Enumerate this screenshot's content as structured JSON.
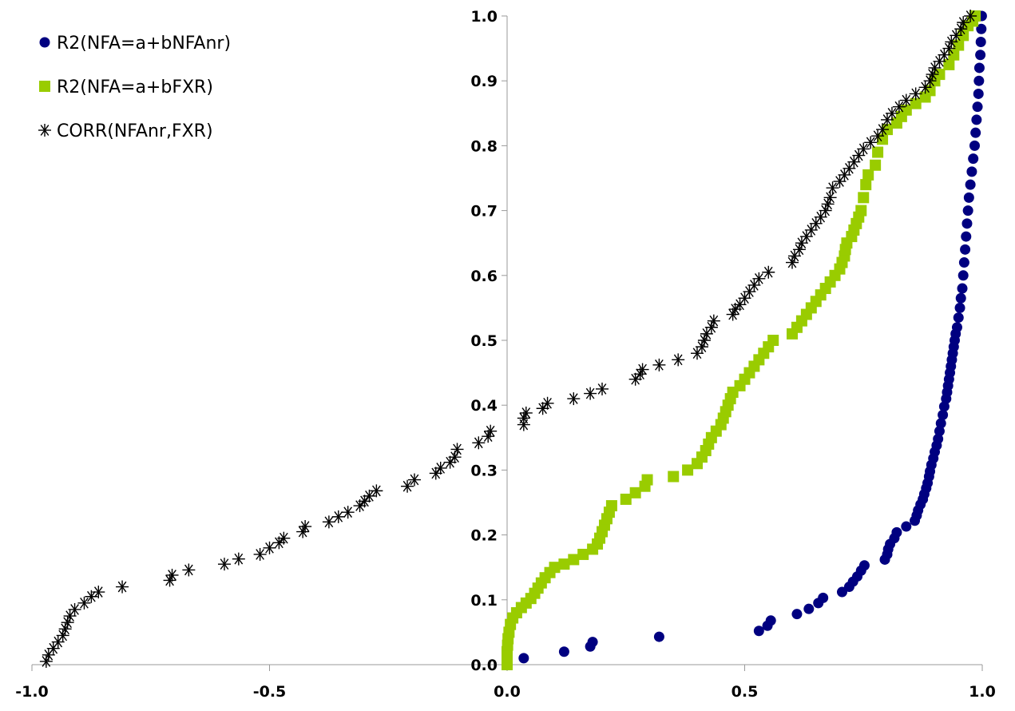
{
  "chart_data": {
    "type": "scatter",
    "title": "",
    "xlabel": "",
    "ylabel": "",
    "xlim": [
      -1.0,
      1.0
    ],
    "ylim": [
      0.0,
      1.0
    ],
    "x_ticks": [
      "-1.0",
      "-0.5",
      "0.0",
      "0.5",
      "1.0"
    ],
    "y_ticks": [
      "0.0",
      "0.1",
      "0.2",
      "0.3",
      "0.4",
      "0.5",
      "0.6",
      "0.7",
      "0.8",
      "0.9",
      "1.0"
    ],
    "grid": false,
    "legend_position": "top-left",
    "series": [
      {
        "name": "R2(NFA=a+bNFAnr)",
        "marker": "circle",
        "color": "#000080",
        "points": [
          [
            0.035,
            0.01
          ],
          [
            0.12,
            0.02
          ],
          [
            0.175,
            0.028
          ],
          [
            0.18,
            0.035
          ],
          [
            0.32,
            0.043
          ],
          [
            0.53,
            0.052
          ],
          [
            0.548,
            0.06
          ],
          [
            0.555,
            0.068
          ],
          [
            0.61,
            0.078
          ],
          [
            0.635,
            0.086
          ],
          [
            0.655,
            0.095
          ],
          [
            0.665,
            0.103
          ],
          [
            0.705,
            0.112
          ],
          [
            0.72,
            0.12
          ],
          [
            0.728,
            0.128
          ],
          [
            0.737,
            0.136
          ],
          [
            0.745,
            0.145
          ],
          [
            0.752,
            0.153
          ],
          [
            0.795,
            0.162
          ],
          [
            0.8,
            0.17
          ],
          [
            0.802,
            0.178
          ],
          [
            0.806,
            0.186
          ],
          [
            0.815,
            0.195
          ],
          [
            0.82,
            0.204
          ],
          [
            0.84,
            0.213
          ],
          [
            0.858,
            0.222
          ],
          [
            0.862,
            0.23
          ],
          [
            0.865,
            0.238
          ],
          [
            0.87,
            0.247
          ],
          [
            0.875,
            0.255
          ],
          [
            0.878,
            0.263
          ],
          [
            0.882,
            0.272
          ],
          [
            0.885,
            0.28
          ],
          [
            0.888,
            0.29
          ],
          [
            0.89,
            0.298
          ],
          [
            0.893,
            0.308
          ],
          [
            0.897,
            0.318
          ],
          [
            0.9,
            0.328
          ],
          [
            0.904,
            0.338
          ],
          [
            0.907,
            0.348
          ],
          [
            0.91,
            0.36
          ],
          [
            0.913,
            0.372
          ],
          [
            0.917,
            0.385
          ],
          [
            0.92,
            0.398
          ],
          [
            0.924,
            0.41
          ],
          [
            0.926,
            0.42
          ],
          [
            0.928,
            0.43
          ],
          [
            0.93,
            0.44
          ],
          [
            0.932,
            0.45
          ],
          [
            0.934,
            0.46
          ],
          [
            0.936,
            0.47
          ],
          [
            0.938,
            0.48
          ],
          [
            0.94,
            0.49
          ],
          [
            0.942,
            0.5
          ],
          [
            0.944,
            0.51
          ],
          [
            0.947,
            0.52
          ],
          [
            0.95,
            0.535
          ],
          [
            0.953,
            0.55
          ],
          [
            0.955,
            0.565
          ],
          [
            0.958,
            0.58
          ],
          [
            0.96,
            0.6
          ],
          [
            0.962,
            0.62
          ],
          [
            0.964,
            0.64
          ],
          [
            0.966,
            0.66
          ],
          [
            0.968,
            0.68
          ],
          [
            0.97,
            0.7
          ],
          [
            0.972,
            0.72
          ],
          [
            0.975,
            0.74
          ],
          [
            0.978,
            0.76
          ],
          [
            0.981,
            0.78
          ],
          [
            0.984,
            0.8
          ],
          [
            0.986,
            0.82
          ],
          [
            0.988,
            0.84
          ],
          [
            0.99,
            0.86
          ],
          [
            0.992,
            0.88
          ],
          [
            0.993,
            0.9
          ],
          [
            0.994,
            0.92
          ],
          [
            0.996,
            0.94
          ],
          [
            0.997,
            0.96
          ],
          [
            0.998,
            0.98
          ],
          [
            0.999,
            1.0
          ]
        ]
      },
      {
        "name": "R2(NFA=a+bFXR)",
        "marker": "square",
        "color": "#99cc00",
        "points": [
          [
            0.0,
            0.0
          ],
          [
            0.0,
            0.01
          ],
          [
            0.0,
            0.02
          ],
          [
            0.001,
            0.03
          ],
          [
            0.002,
            0.04
          ],
          [
            0.004,
            0.05
          ],
          [
            0.007,
            0.062
          ],
          [
            0.012,
            0.072
          ],
          [
            0.02,
            0.08
          ],
          [
            0.03,
            0.088
          ],
          [
            0.04,
            0.095
          ],
          [
            0.05,
            0.102
          ],
          [
            0.058,
            0.11
          ],
          [
            0.065,
            0.118
          ],
          [
            0.072,
            0.126
          ],
          [
            0.08,
            0.134
          ],
          [
            0.09,
            0.142
          ],
          [
            0.1,
            0.15
          ],
          [
            0.12,
            0.155
          ],
          [
            0.14,
            0.162
          ],
          [
            0.16,
            0.17
          ],
          [
            0.18,
            0.178
          ],
          [
            0.19,
            0.186
          ],
          [
            0.195,
            0.195
          ],
          [
            0.2,
            0.205
          ],
          [
            0.205,
            0.215
          ],
          [
            0.21,
            0.225
          ],
          [
            0.215,
            0.235
          ],
          [
            0.22,
            0.245
          ],
          [
            0.25,
            0.255
          ],
          [
            0.27,
            0.265
          ],
          [
            0.29,
            0.275
          ],
          [
            0.295,
            0.285
          ],
          [
            0.35,
            0.29
          ],
          [
            0.38,
            0.3
          ],
          [
            0.4,
            0.31
          ],
          [
            0.41,
            0.32
          ],
          [
            0.418,
            0.33
          ],
          [
            0.424,
            0.34
          ],
          [
            0.43,
            0.35
          ],
          [
            0.44,
            0.36
          ],
          [
            0.45,
            0.37
          ],
          [
            0.455,
            0.38
          ],
          [
            0.46,
            0.39
          ],
          [
            0.465,
            0.4
          ],
          [
            0.47,
            0.41
          ],
          [
            0.475,
            0.42
          ],
          [
            0.49,
            0.43
          ],
          [
            0.5,
            0.44
          ],
          [
            0.51,
            0.45
          ],
          [
            0.52,
            0.46
          ],
          [
            0.53,
            0.47
          ],
          [
            0.54,
            0.48
          ],
          [
            0.55,
            0.49
          ],
          [
            0.56,
            0.5
          ],
          [
            0.6,
            0.51
          ],
          [
            0.61,
            0.52
          ],
          [
            0.62,
            0.53
          ],
          [
            0.63,
            0.54
          ],
          [
            0.64,
            0.55
          ],
          [
            0.65,
            0.56
          ],
          [
            0.66,
            0.57
          ],
          [
            0.67,
            0.58
          ],
          [
            0.68,
            0.59
          ],
          [
            0.69,
            0.6
          ],
          [
            0.7,
            0.61
          ],
          [
            0.705,
            0.62
          ],
          [
            0.71,
            0.63
          ],
          [
            0.712,
            0.64
          ],
          [
            0.715,
            0.65
          ],
          [
            0.725,
            0.66
          ],
          [
            0.73,
            0.67
          ],
          [
            0.735,
            0.68
          ],
          [
            0.74,
            0.69
          ],
          [
            0.745,
            0.7
          ],
          [
            0.75,
            0.72
          ],
          [
            0.755,
            0.74
          ],
          [
            0.76,
            0.755
          ],
          [
            0.775,
            0.77
          ],
          [
            0.78,
            0.79
          ],
          [
            0.79,
            0.81
          ],
          [
            0.8,
            0.825
          ],
          [
            0.82,
            0.835
          ],
          [
            0.83,
            0.845
          ],
          [
            0.84,
            0.855
          ],
          [
            0.86,
            0.865
          ],
          [
            0.88,
            0.875
          ],
          [
            0.89,
            0.885
          ],
          [
            0.9,
            0.9
          ],
          [
            0.91,
            0.91
          ],
          [
            0.93,
            0.925
          ],
          [
            0.94,
            0.94
          ],
          [
            0.95,
            0.955
          ],
          [
            0.96,
            0.97
          ],
          [
            0.97,
            0.985
          ],
          [
            0.98,
            0.992
          ],
          [
            0.985,
            1.0
          ]
        ]
      },
      {
        "name": "CORR(NFAnr,FXR)",
        "marker": "asterisk",
        "color": "#000000",
        "points": [
          [
            -0.97,
            0.005
          ],
          [
            -0.965,
            0.015
          ],
          [
            -0.955,
            0.025
          ],
          [
            -0.945,
            0.035
          ],
          [
            -0.935,
            0.045
          ],
          [
            -0.93,
            0.055
          ],
          [
            -0.925,
            0.065
          ],
          [
            -0.92,
            0.075
          ],
          [
            -0.91,
            0.085
          ],
          [
            -0.89,
            0.095
          ],
          [
            -0.875,
            0.105
          ],
          [
            -0.86,
            0.112
          ],
          [
            -0.81,
            0.12
          ],
          [
            -0.71,
            0.13
          ],
          [
            -0.705,
            0.138
          ],
          [
            -0.67,
            0.146
          ],
          [
            -0.595,
            0.155
          ],
          [
            -0.565,
            0.163
          ],
          [
            -0.52,
            0.17
          ],
          [
            -0.5,
            0.18
          ],
          [
            -0.48,
            0.188
          ],
          [
            -0.47,
            0.195
          ],
          [
            -0.43,
            0.205
          ],
          [
            -0.425,
            0.213
          ],
          [
            -0.375,
            0.22
          ],
          [
            -0.355,
            0.228
          ],
          [
            -0.335,
            0.235
          ],
          [
            -0.31,
            0.245
          ],
          [
            -0.3,
            0.252
          ],
          [
            -0.29,
            0.26
          ],
          [
            -0.275,
            0.268
          ],
          [
            -0.21,
            0.275
          ],
          [
            -0.195,
            0.285
          ],
          [
            -0.15,
            0.295
          ],
          [
            -0.14,
            0.303
          ],
          [
            -0.12,
            0.312
          ],
          [
            -0.11,
            0.32
          ],
          [
            -0.105,
            0.332
          ],
          [
            -0.06,
            0.342
          ],
          [
            -0.04,
            0.352
          ],
          [
            -0.035,
            0.36
          ],
          [
            0.035,
            0.37
          ],
          [
            0.035,
            0.38
          ],
          [
            0.04,
            0.388
          ],
          [
            0.075,
            0.395
          ],
          [
            0.085,
            0.403
          ],
          [
            0.14,
            0.41
          ],
          [
            0.175,
            0.418
          ],
          [
            0.2,
            0.425
          ],
          [
            0.27,
            0.44
          ],
          [
            0.28,
            0.448
          ],
          [
            0.285,
            0.455
          ],
          [
            0.32,
            0.462
          ],
          [
            0.36,
            0.47
          ],
          [
            0.4,
            0.48
          ],
          [
            0.41,
            0.49
          ],
          [
            0.415,
            0.5
          ],
          [
            0.42,
            0.51
          ],
          [
            0.43,
            0.52
          ],
          [
            0.435,
            0.53
          ],
          [
            0.475,
            0.54
          ],
          [
            0.48,
            0.548
          ],
          [
            0.49,
            0.555
          ],
          [
            0.5,
            0.565
          ],
          [
            0.51,
            0.575
          ],
          [
            0.52,
            0.585
          ],
          [
            0.53,
            0.595
          ],
          [
            0.55,
            0.605
          ],
          [
            0.6,
            0.62
          ],
          [
            0.605,
            0.63
          ],
          [
            0.615,
            0.64
          ],
          [
            0.62,
            0.65
          ],
          [
            0.63,
            0.66
          ],
          [
            0.64,
            0.67
          ],
          [
            0.65,
            0.68
          ],
          [
            0.66,
            0.69
          ],
          [
            0.67,
            0.7
          ],
          [
            0.675,
            0.71
          ],
          [
            0.68,
            0.72
          ],
          [
            0.685,
            0.735
          ],
          [
            0.7,
            0.745
          ],
          [
            0.71,
            0.755
          ],
          [
            0.72,
            0.765
          ],
          [
            0.73,
            0.775
          ],
          [
            0.74,
            0.785
          ],
          [
            0.75,
            0.795
          ],
          [
            0.765,
            0.805
          ],
          [
            0.78,
            0.815
          ],
          [
            0.79,
            0.825
          ],
          [
            0.8,
            0.84
          ],
          [
            0.81,
            0.85
          ],
          [
            0.825,
            0.86
          ],
          [
            0.84,
            0.87
          ],
          [
            0.86,
            0.88
          ],
          [
            0.88,
            0.89
          ],
          [
            0.89,
            0.9
          ],
          [
            0.895,
            0.91
          ],
          [
            0.9,
            0.92
          ],
          [
            0.91,
            0.93
          ],
          [
            0.92,
            0.94
          ],
          [
            0.93,
            0.95
          ],
          [
            0.935,
            0.96
          ],
          [
            0.945,
            0.97
          ],
          [
            0.955,
            0.98
          ],
          [
            0.96,
            0.99
          ],
          [
            0.975,
            1.0
          ]
        ]
      }
    ]
  }
}
